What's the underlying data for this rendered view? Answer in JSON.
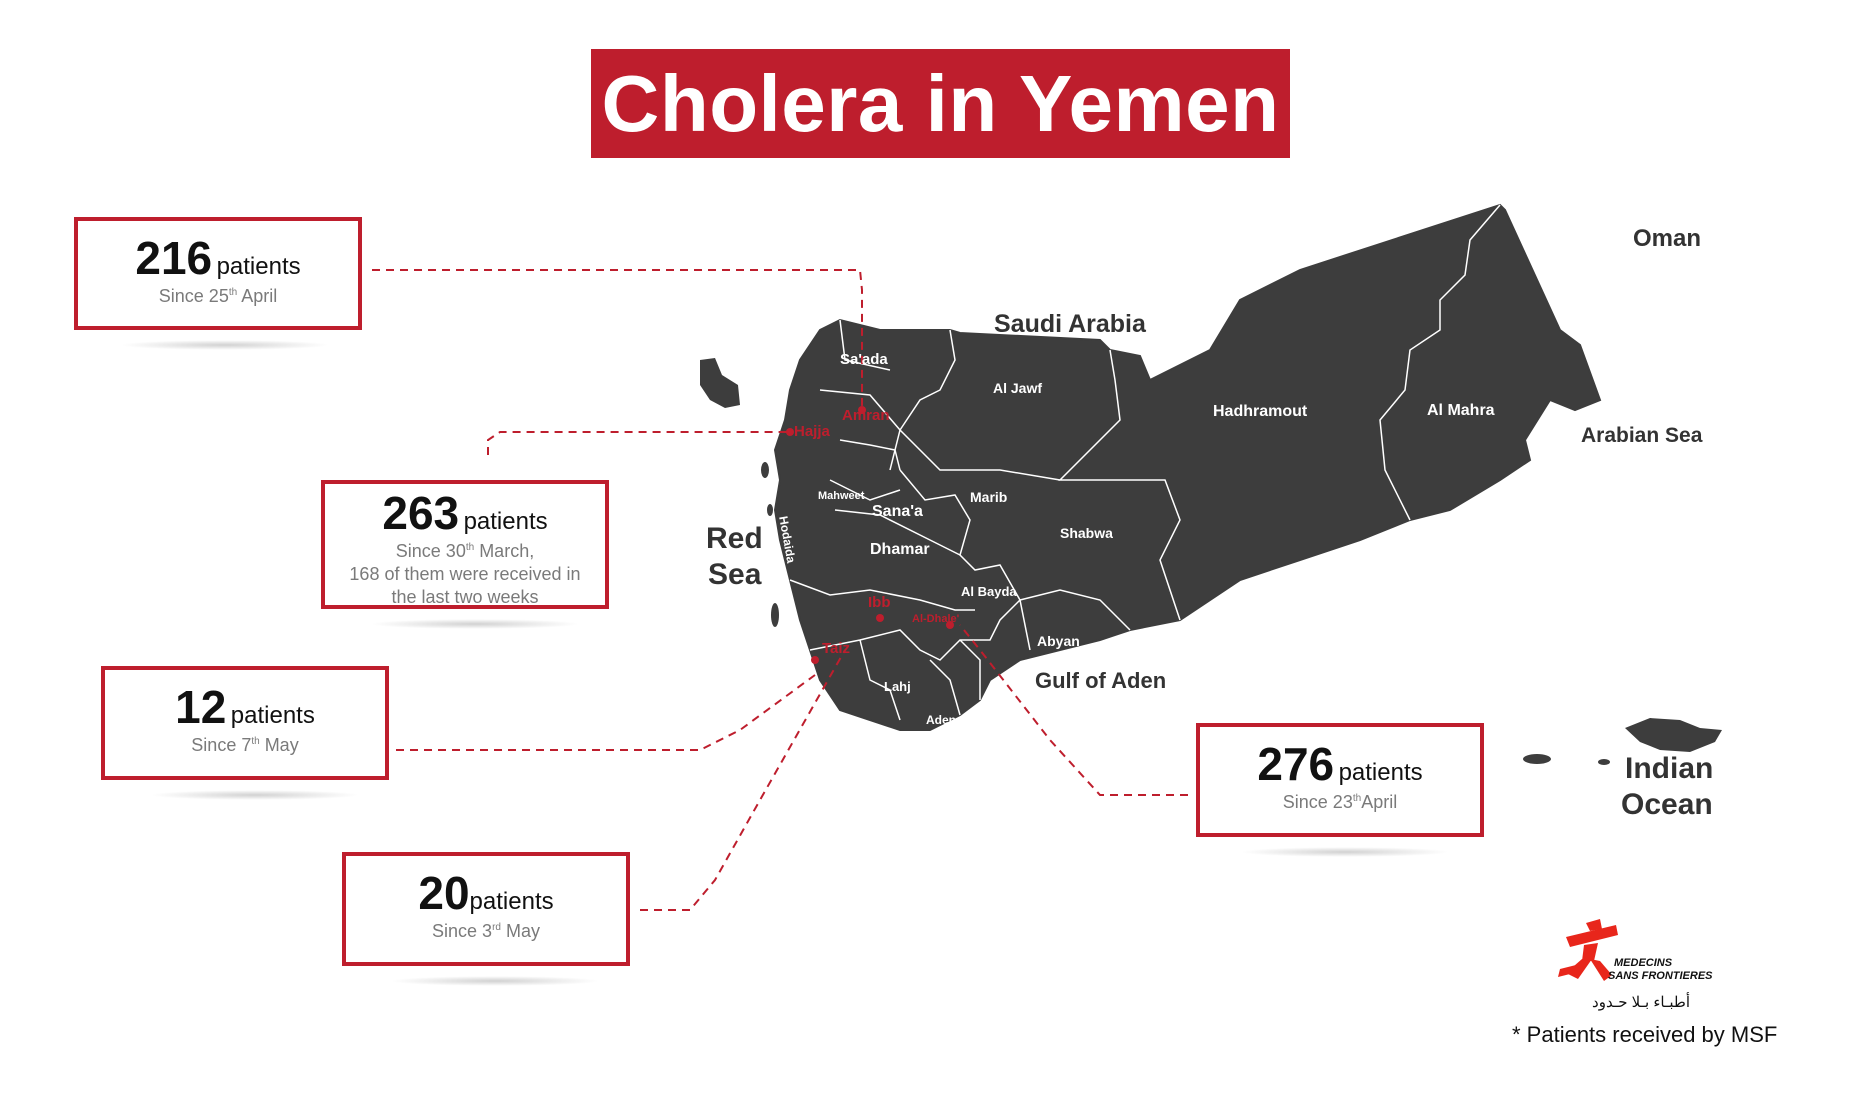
{
  "title": "Cholera in Yemen",
  "countries": {
    "saudi_arabia": "Saudi Arabia",
    "oman": "Oman"
  },
  "seas": {
    "red_sea_1": "Red",
    "red_sea_2": "Sea",
    "arabian_sea": "Arabian Sea",
    "gulf_of_aden": "Gulf of Aden",
    "indian_ocean_1": "Indian",
    "indian_ocean_2": "Ocean"
  },
  "regions": {
    "saada": "Sa'ada",
    "amran": "Amran",
    "hajja": "Hajja",
    "al_jawf": "Al Jawf",
    "hadhramout": "Hadhramout",
    "al_mahra": "Al Mahra",
    "mahweet": "Mahweet",
    "hodaida": "Hodaida",
    "sanaa": "Sana'a",
    "marib": "Marib",
    "shabwa": "Shabwa",
    "dhamar": "Dhamar",
    "al_bayda": "Al Bayda",
    "ibb": "Ibb",
    "al_dhale": "Al-Dhale'",
    "taiz": "Taiz",
    "lahj": "Lahj",
    "aden": "Aden",
    "abyan": "Abyan"
  },
  "callouts": {
    "amran": {
      "count": "216",
      "unit": "patients",
      "since_pre": "Since 25",
      "since_sup": "th",
      "since_post": " April"
    },
    "hajja": {
      "count": "263",
      "unit": "patients",
      "since_pre": "Since 30",
      "since_sup": "th",
      "since_post": " March,",
      "extra_1": "168 of them were received in",
      "extra_2": "the last two weeks"
    },
    "taiz": {
      "count": "12",
      "unit": "patients",
      "since_pre": "Since 7",
      "since_sup": "th",
      "since_post": " May"
    },
    "ibb": {
      "count": "20",
      "unit": "patients",
      "since_pre": "Since 3",
      "since_sup": "rd",
      "since_post": " May"
    },
    "al_dhale": {
      "count": "276",
      "unit": "patients",
      "since_pre": "Since 23",
      "since_sup": "th",
      "since_post": "April"
    }
  },
  "logo": {
    "line1": "MEDECINS",
    "line2": "SANS FRONTIERES",
    "arabic": "أطبـاء بـلا حـدود"
  },
  "footnote": "* Patients received by MSF",
  "colors": {
    "accent": "#be1e2d",
    "land": "#3d3d3d",
    "border": "#ffffff"
  }
}
